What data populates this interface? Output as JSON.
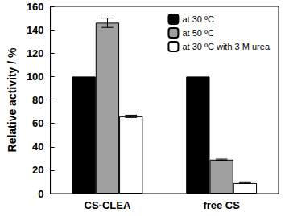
{
  "chart_data": {
    "type": "bar",
    "y_label": "Relative activity / %",
    "categories": [
      "CS-CLEA",
      "free CS"
    ],
    "series": [
      {
        "name": "at 30 ºC",
        "color": "#000000",
        "values": [
          100,
          100
        ]
      },
      {
        "name": "at 50 ºC",
        "color": "#a0a0a0",
        "values": [
          146,
          29
        ],
        "errors": [
          4,
          0.5
        ]
      },
      {
        "name": "at 30 ºC with 3 M urea",
        "color": "#ffffff",
        "values": [
          66,
          9
        ],
        "errors": [
          1,
          0.4
        ]
      }
    ],
    "ylim": [
      0,
      160
    ],
    "yticks": [
      0,
      20,
      40,
      60,
      80,
      100,
      120,
      140,
      160
    ],
    "grid": false,
    "legend": "upper right"
  }
}
